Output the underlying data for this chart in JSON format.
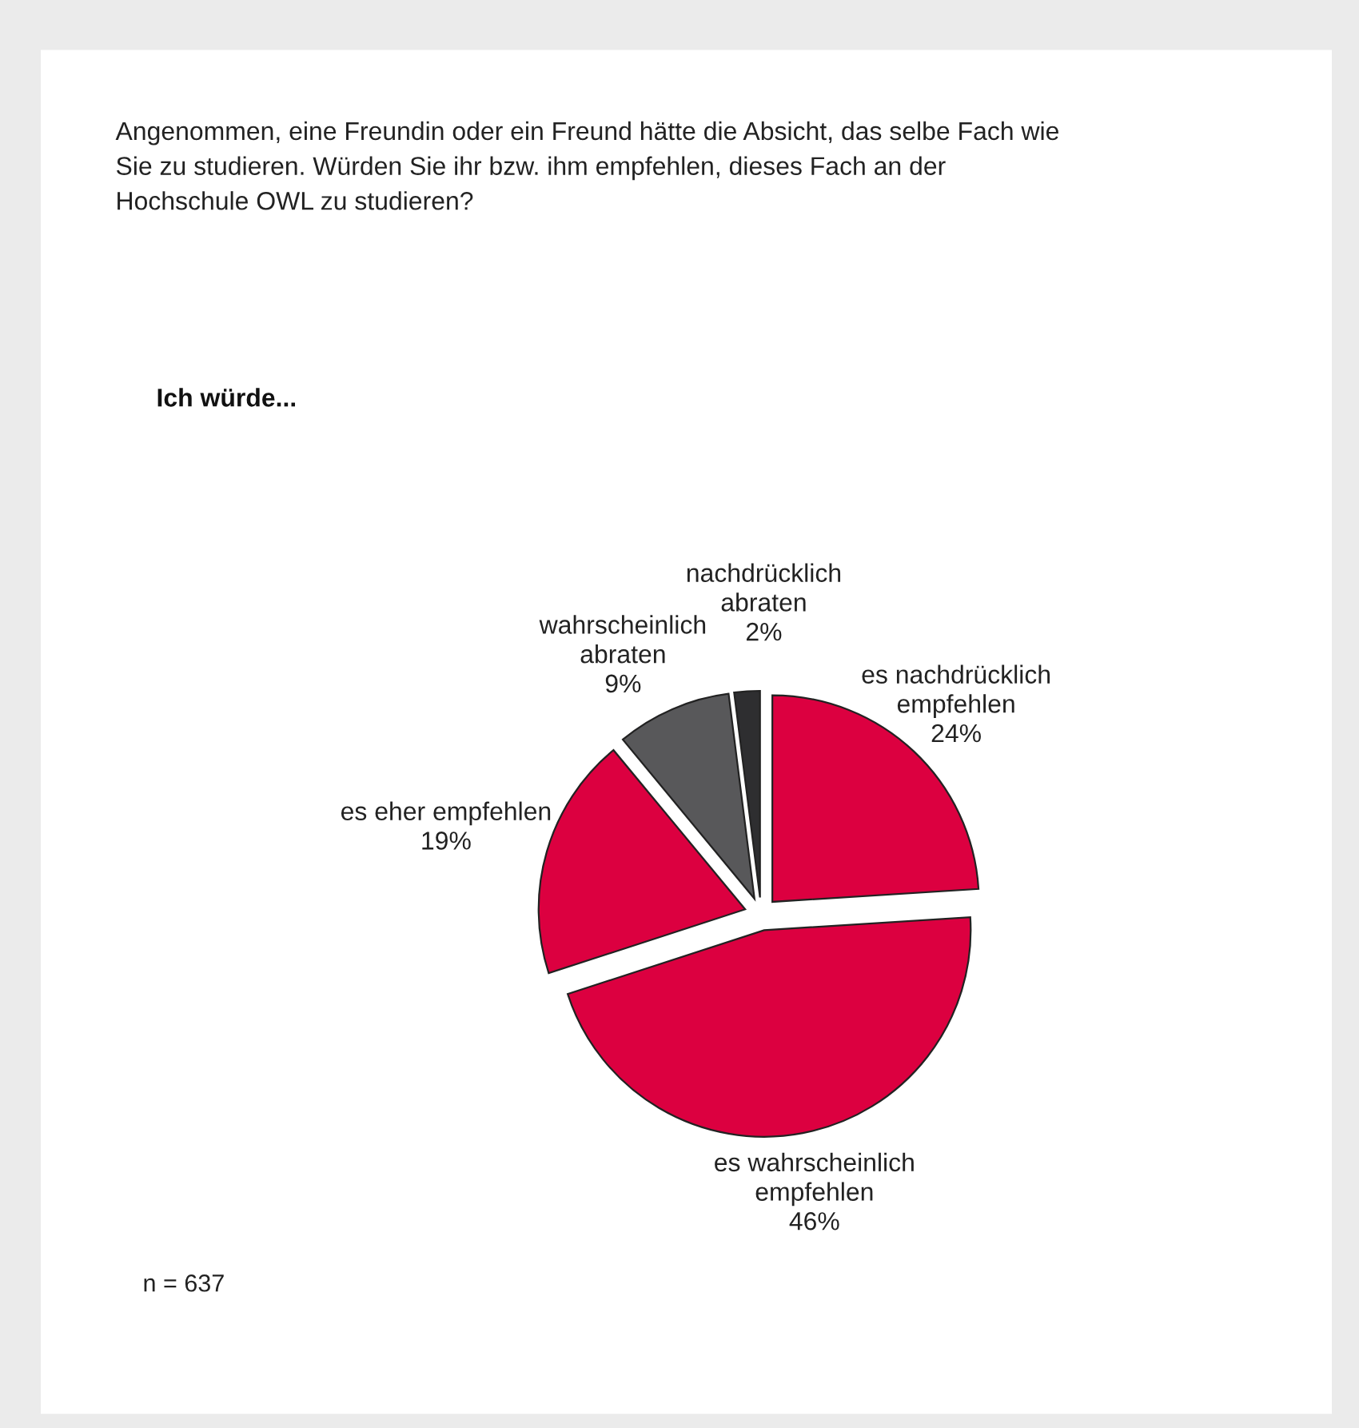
{
  "chart_data": {
    "type": "pie",
    "title": "Angenommen, eine Freundin oder ein Freund hätte die Absicht, das selbe Fach wie\nSie zu studieren. Würden Sie ihr bzw. ihm empfehlen, dieses Fach an der\nHochschule OWL zu studieren?",
    "subtitle": "Ich würde...",
    "categories": [
      "es nachdrücklich\nempfehlen",
      "es wahrscheinlich\nempfehlen",
      "es eher empfehlen",
      "wahrscheinlich\nabraten",
      "nachdrücklich\nabraten"
    ],
    "values": [
      24,
      46,
      19,
      9,
      2
    ],
    "value_labels": [
      "24%",
      "46%",
      "19%",
      "9%",
      "2%"
    ],
    "colors": [
      "#dc0040",
      "#dc0040",
      "#dc0040",
      "#58585a",
      "#2e2e30"
    ],
    "annotations": [
      "n = 637"
    ]
  }
}
